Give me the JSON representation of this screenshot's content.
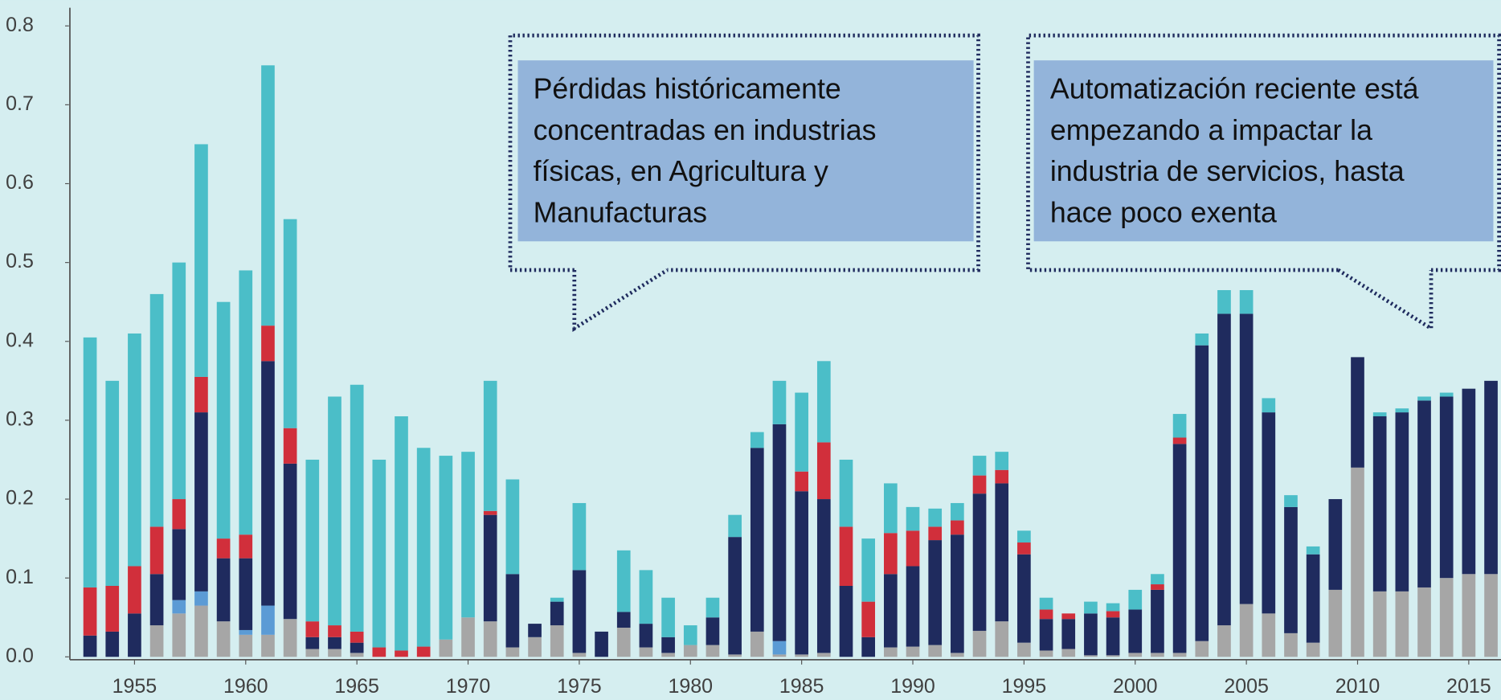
{
  "chart_data": {
    "type": "stacked_bar",
    "x": [
      1953,
      1954,
      1955,
      1956,
      1957,
      1958,
      1959,
      1960,
      1961,
      1962,
      1963,
      1964,
      1965,
      1966,
      1967,
      1968,
      1969,
      1970,
      1971,
      1972,
      1973,
      1974,
      1975,
      1976,
      1977,
      1978,
      1979,
      1980,
      1981,
      1982,
      1983,
      1984,
      1985,
      1986,
      1987,
      1988,
      1989,
      1990,
      1991,
      1992,
      1993,
      1994,
      1995,
      1996,
      1997,
      1998,
      1999,
      2000,
      2001,
      2002,
      2003,
      2004,
      2005,
      2006,
      2007,
      2008,
      2009,
      2010,
      2011,
      2012,
      2013,
      2014,
      2015,
      2016
    ],
    "xlim": [
      1952.05,
      2016.45
    ],
    "xticks": [
      1955,
      1960,
      1965,
      1970,
      1975,
      1980,
      1985,
      1990,
      1995,
      2000,
      2005,
      2010,
      2015
    ],
    "ylim": [
      0,
      0.8
    ],
    "yticks": [
      {
        "value": 0,
        "label": "0.0"
      },
      0.1,
      0.2,
      0.3,
      0.4,
      0.5,
      0.6,
      0.7,
      0.8
    ],
    "series": [
      {
        "color": "#a6a6a6",
        "values": [
          0,
          0,
          0,
          0.04,
          0.055,
          0.065,
          0.045,
          0.028,
          0.028,
          0.048,
          0.01,
          0.01,
          0.005,
          0,
          0,
          0,
          0.022,
          0.05,
          0.045,
          0.012,
          0.025,
          0.04,
          0.005,
          0,
          0.037,
          0.012,
          0.005,
          0.015,
          0.015,
          0.003,
          0.032,
          0.003,
          0.003,
          0.005,
          0,
          0,
          0.012,
          0.013,
          0.015,
          0.005,
          0.033,
          0.045,
          0.018,
          0.008,
          0.01,
          0.002,
          0.002,
          0.005,
          0.005,
          0.005,
          0.02,
          0.04,
          0.067,
          0.055,
          0.03,
          0.018,
          0.085,
          0.24,
          0.083,
          0.083,
          0.088,
          0.1,
          0.105,
          0.105
        ]
      },
      {
        "color": "#5b9bd5",
        "values": [
          0,
          0,
          0,
          0,
          0.017,
          0.018,
          0,
          0.006,
          0.037,
          0,
          0,
          0,
          0,
          0,
          0,
          0,
          0,
          0,
          0,
          0,
          0,
          0,
          0,
          0,
          0,
          0,
          0,
          0,
          0,
          0,
          0,
          0.017,
          0,
          0,
          0,
          0,
          0,
          0,
          0,
          0,
          0,
          0,
          0,
          0,
          0,
          0,
          0,
          0,
          0,
          0,
          0,
          0,
          0,
          0,
          0,
          0,
          0,
          0,
          0,
          0,
          0,
          0,
          0,
          0
        ]
      },
      {
        "color": "#1f2b5e",
        "values": [
          0.027,
          0.032,
          0.055,
          0.065,
          0.09,
          0.227,
          0.08,
          0.091,
          0.31,
          0.197,
          0.015,
          0.015,
          0.013,
          0,
          0,
          0,
          0,
          0,
          0.135,
          0.093,
          0.017,
          0.03,
          0.105,
          0.032,
          0.02,
          0.03,
          0.02,
          0,
          0.035,
          0.149,
          0.233,
          0.275,
          0.207,
          0.195,
          0.09,
          0.025,
          0.093,
          0.102,
          0.133,
          0.15,
          0.174,
          0.175,
          0.112,
          0.04,
          0.038,
          0.053,
          0.048,
          0.055,
          0.08,
          0.265,
          0.375,
          0.395,
          0.368,
          0.255,
          0.16,
          0.112,
          0.115,
          0.14,
          0.222,
          0.227,
          0.237,
          0.23,
          0.235,
          0.245
        ]
      },
      {
        "color": "#d12f3b",
        "values": [
          0.061,
          0.058,
          0.06,
          0.06,
          0.038,
          0.045,
          0.025,
          0.03,
          0.045,
          0.045,
          0.02,
          0.015,
          0.014,
          0.012,
          0.008,
          0.013,
          0,
          0,
          0.005,
          0,
          0,
          0,
          0,
          0,
          0,
          0,
          0,
          0,
          0,
          0,
          0,
          0,
          0.025,
          0.072,
          0.075,
          0.045,
          0.052,
          0.045,
          0.017,
          0.018,
          0.023,
          0.017,
          0.015,
          0.012,
          0.007,
          0,
          0.008,
          0,
          0.007,
          0.008,
          0,
          0,
          0,
          0,
          0,
          0,
          0,
          0,
          0,
          0,
          0,
          0,
          0,
          0
        ]
      },
      {
        "color": "#4bbec8",
        "values": [
          0.317,
          0.26,
          0.295,
          0.295,
          0.3,
          0.295,
          0.3,
          0.335,
          0.33,
          0.265,
          0.205,
          0.29,
          0.313,
          0.238,
          0.297,
          0.252,
          0.233,
          0.21,
          0.165,
          0.12,
          0,
          0.005,
          0.085,
          0,
          0.078,
          0.068,
          0.05,
          0.025,
          0.025,
          0.028,
          0.02,
          0.055,
          0.1,
          0.103,
          0.085,
          0.08,
          0.063,
          0.03,
          0.023,
          0.022,
          0.025,
          0.023,
          0.015,
          0.015,
          0,
          0.015,
          0.01,
          0.025,
          0.013,
          0.03,
          0.015,
          0.03,
          0.03,
          0.018,
          0.015,
          0.01,
          0,
          0,
          0.005,
          0.005,
          0.005,
          0.005,
          0,
          0
        ]
      }
    ],
    "annotations": [
      [
        "Pérdidas históricamente",
        "concentradas en industrias",
        "físicas, en Agricultura y",
        "Manufacturas"
      ],
      [
        "Automatización reciente está",
        "empezando a impactar la",
        "industria de servicios, hasta",
        "hace poco exenta"
      ]
    ]
  }
}
